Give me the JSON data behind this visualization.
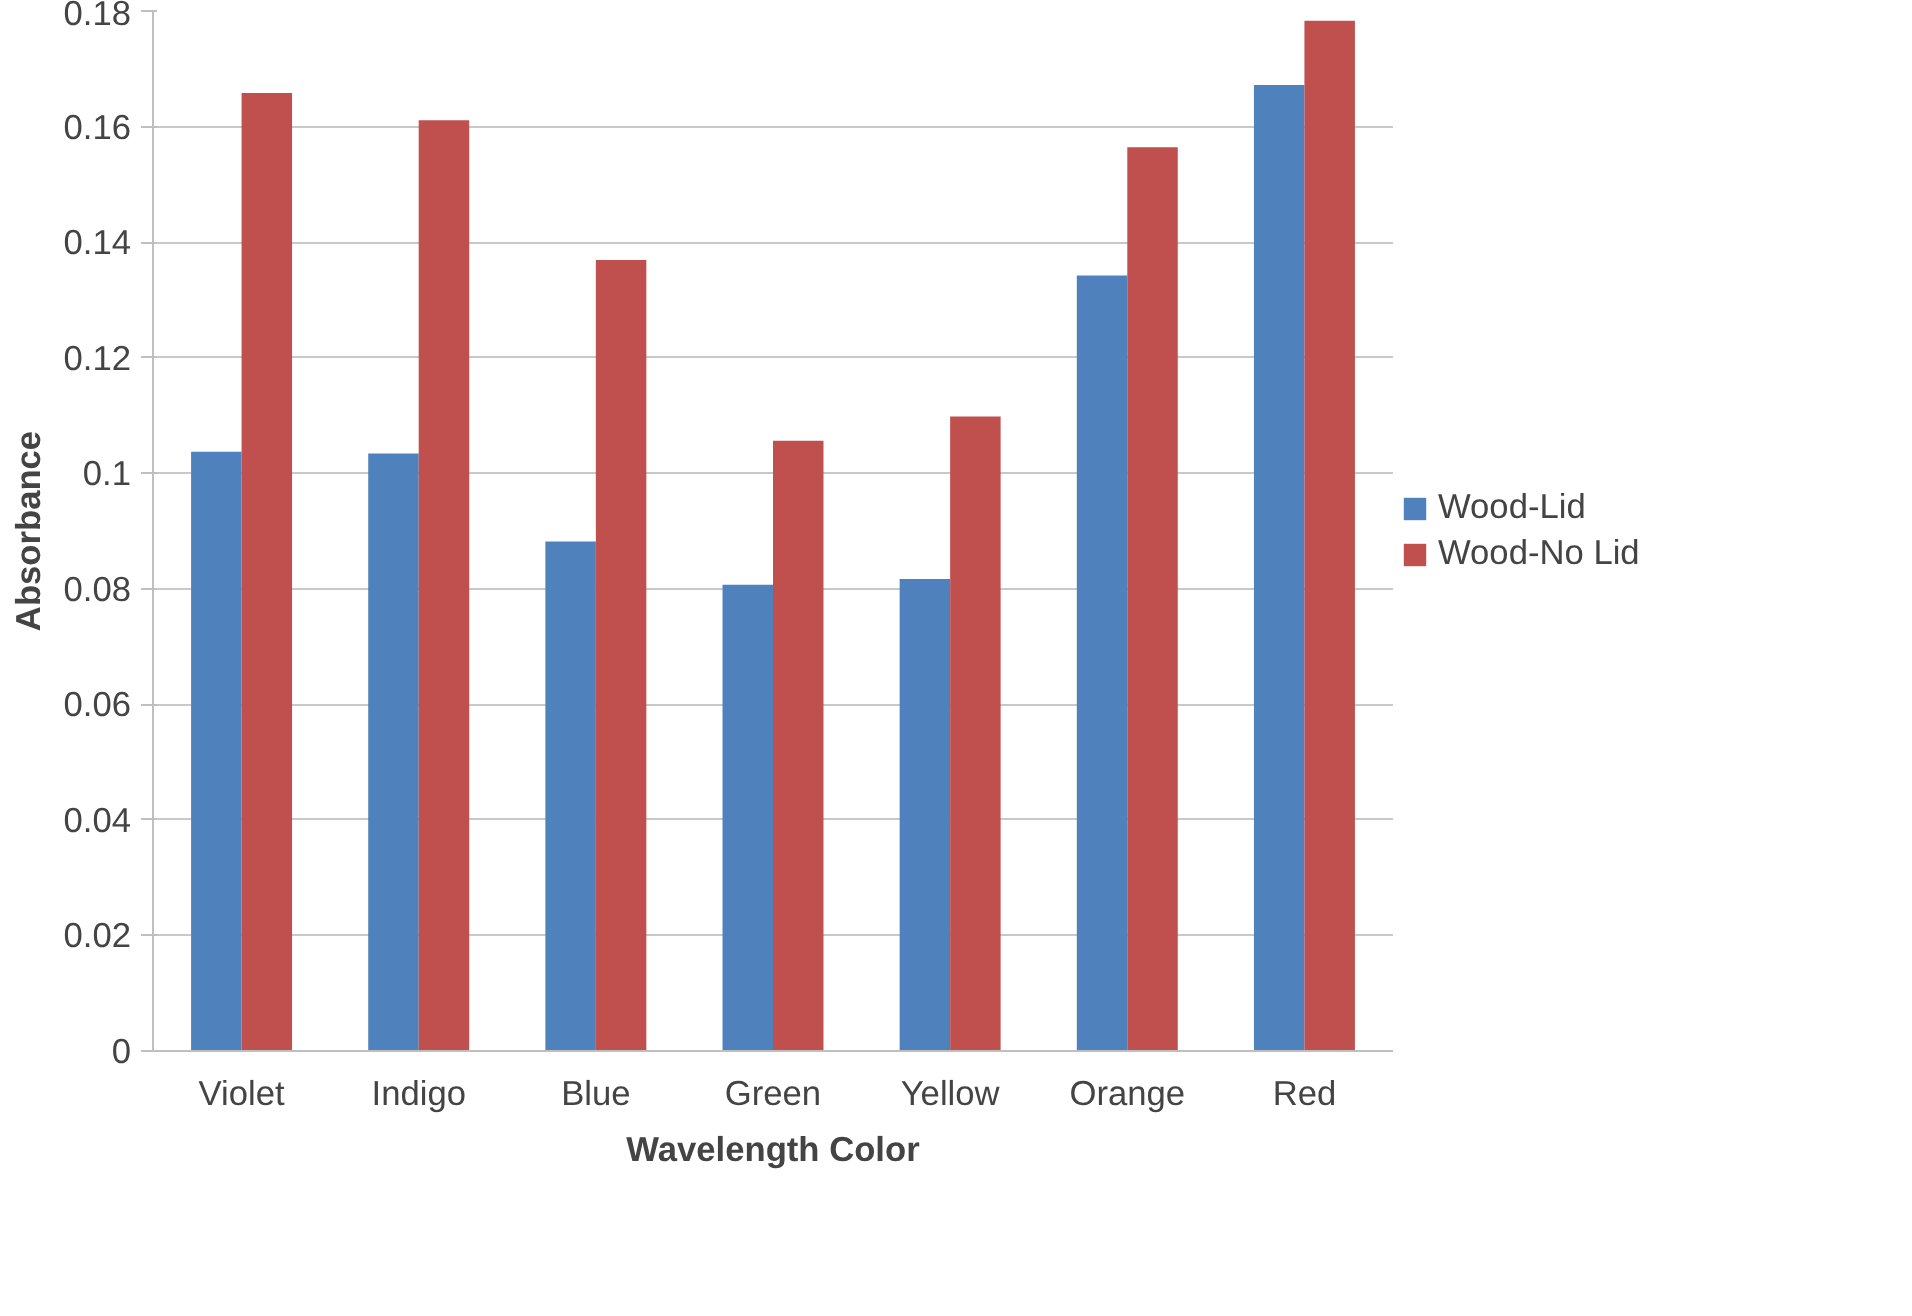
{
  "chart_data": {
    "type": "bar",
    "xlabel": "Wavelength Color",
    "ylabel": "Absorbance",
    "categories": [
      "Violet",
      "Indigo",
      "Blue",
      "Green",
      "Yellow",
      "Orange",
      "Red"
    ],
    "series": [
      {
        "name": "Wood-Lid",
        "color": "#4f81bd",
        "values": [
          0.1037,
          0.1034,
          0.0882,
          0.0807,
          0.0817,
          0.1342,
          0.1672
        ]
      },
      {
        "name": "Wood-No Lid",
        "color": "#c0504d",
        "values": [
          0.1658,
          0.1611,
          0.1369,
          0.1056,
          0.1098,
          0.1564,
          0.1783
        ]
      }
    ],
    "ylim": [
      0,
      0.18
    ],
    "yticks": [
      0,
      {
        "value": 0.02,
        "label": "0.02"
      },
      {
        "value": 0.04,
        "label": "0.04"
      },
      {
        "value": 0.06,
        "label": "0.06"
      },
      {
        "value": 0.08,
        "label": "0.08"
      },
      {
        "value": 0.1,
        "label": "0.1"
      },
      {
        "value": 0.12,
        "label": "0.12"
      },
      {
        "value": 0.14,
        "label": "0.14"
      },
      {
        "value": 0.16,
        "label": "0.16"
      },
      {
        "value": 0.18,
        "label": "0.18"
      }
    ],
    "grid": "y",
    "legend": "right"
  }
}
